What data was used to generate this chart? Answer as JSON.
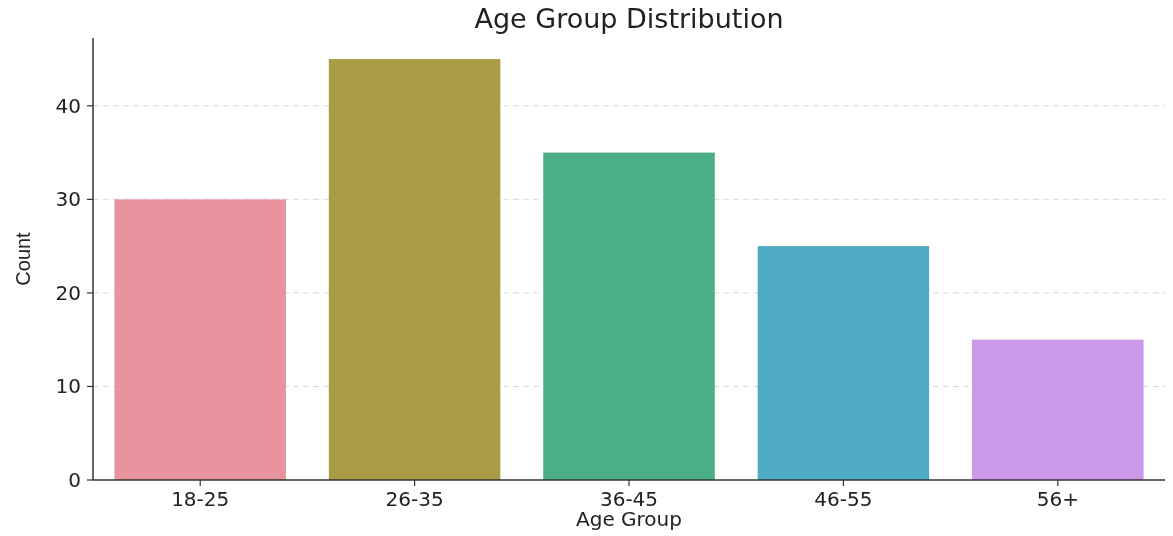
{
  "chart_data": {
    "type": "bar",
    "title": "Age Group Distribution",
    "xlabel": "Age Group",
    "ylabel": "Count",
    "categories": [
      "18-25",
      "26-35",
      "36-45",
      "46-55",
      "56+"
    ],
    "values": [
      30,
      45,
      35,
      25,
      15
    ],
    "colors": [
      "#e8949f",
      "#aa9c46",
      "#4bae86",
      "#4fabc4",
      "#cc99e8"
    ],
    "ylim": [
      0,
      47.25
    ],
    "yticks": [
      0,
      10,
      20,
      30,
      40
    ],
    "grid": "y"
  }
}
